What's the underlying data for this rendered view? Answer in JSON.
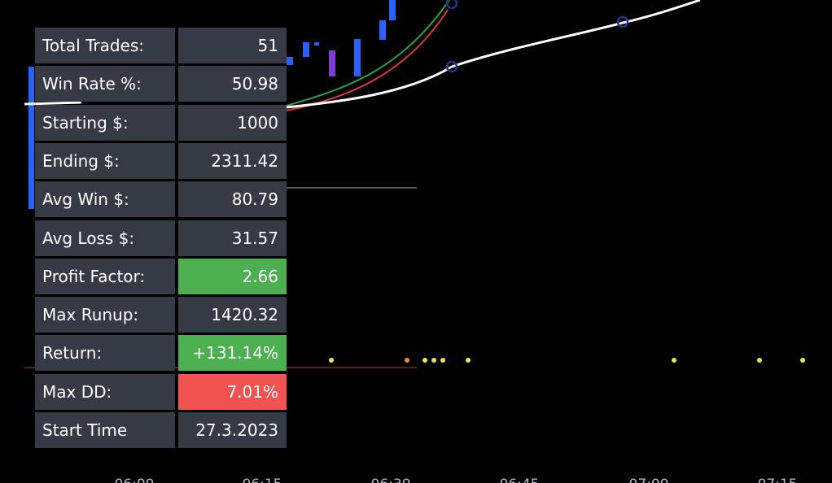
{
  "stats_table": {
    "rows": [
      {
        "label": "Total Trades:",
        "value": "51"
      },
      {
        "label": "Win Rate %:",
        "value": "50.98"
      },
      {
        "label": "Starting $:",
        "value": "1000"
      },
      {
        "label": "Ending $:",
        "value": "2311.42"
      },
      {
        "label": "Avg Win $:",
        "value": "80.79"
      },
      {
        "label": "Avg Loss $:",
        "value": "31.57"
      },
      {
        "label": "Profit Factor:",
        "value": "2.66",
        "color": "#4caf50"
      },
      {
        "label": "Max Runup:",
        "value": "1420.32"
      },
      {
        "label": "Return:",
        "value": "+131.14%",
        "color": "#4caf50"
      },
      {
        "label": "Max DD:",
        "value": "7.01%",
        "color": "#f05350"
      },
      {
        "label": "Start Time",
        "value": "27.3.2023"
      }
    ]
  },
  "time_axis": {
    "labels": [
      "06:00",
      "06:15",
      "06:30",
      "06:45",
      "07:00",
      "07:15"
    ]
  }
}
